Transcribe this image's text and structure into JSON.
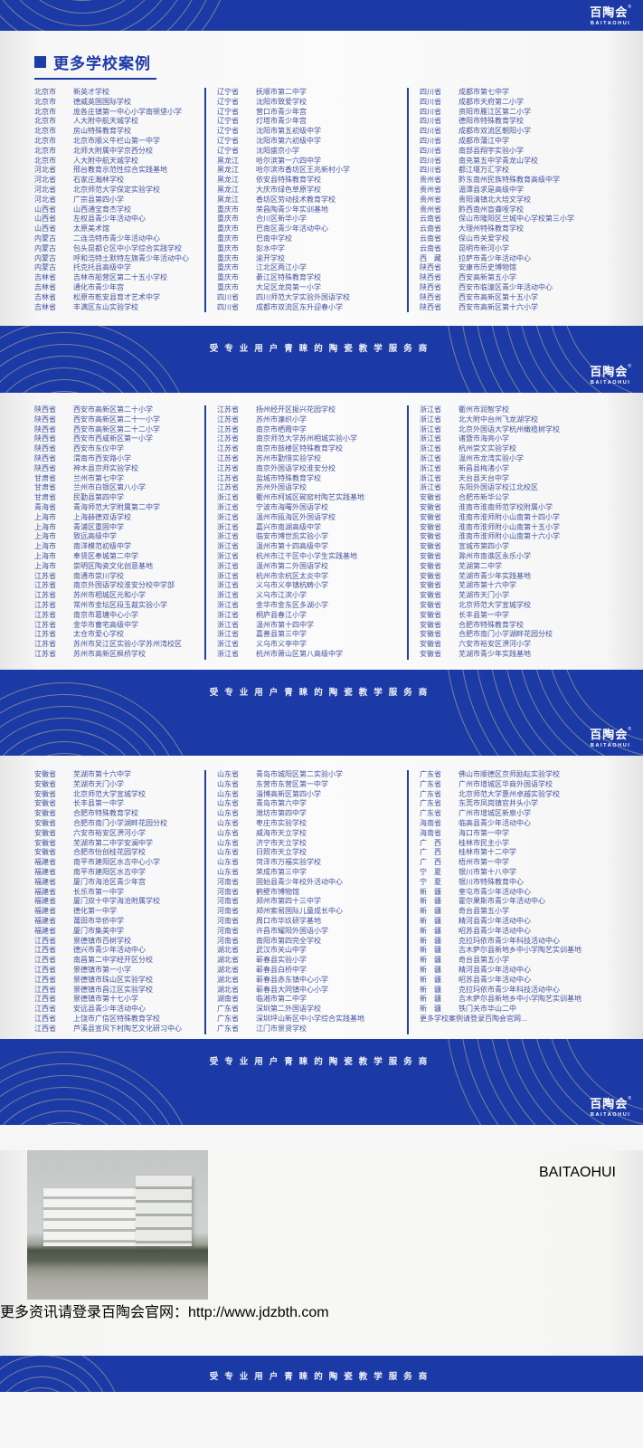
{
  "brand": {
    "logo_cn": "百陶会",
    "logo_en": "BAITAOHUI",
    "reg": "®",
    "slogan": "受专业用户青睐的陶瓷教学服务商"
  },
  "title": "更多学校案例",
  "colors": {
    "brand_blue": "#1c3aa5",
    "list_text_blue": "#43549f",
    "arc_gold": "#d3c396",
    "accent_yellow": "#e0b53a"
  },
  "footer": {
    "watermark": "BAITAOHUI",
    "more_label": "更多资讯请登录百陶会官网：",
    "url": "http://www.jdzbth.com"
  },
  "sections": [
    {
      "columns": [
        [
          [
            "北京市",
            "新英才学校"
          ],
          [
            "北京市",
            "德威英国国际学校"
          ],
          [
            "北京市",
            "庞各庄镇第一中心小学南顿垡小学"
          ],
          [
            "北京市",
            "人大附中航天城学校"
          ],
          [
            "北京市",
            "房山特殊教育学校"
          ],
          [
            "北京市",
            "北京市顺义牛栏山第一中学"
          ],
          [
            "北京市",
            "北师大附属中学京西分校"
          ],
          [
            "北京市",
            "人大附中航天城学校"
          ],
          [
            "河北省",
            "邢台教育示范性综合实践基地"
          ],
          [
            "河北省",
            "石家庄瀚林学校"
          ],
          [
            "河北省",
            "北京师范大学保定实验学校"
          ],
          [
            "河北省",
            "广宗县第四小学"
          ],
          [
            "山西省",
            "山西通宝育杰学校"
          ],
          [
            "山西省",
            "左权县青少年活动中心"
          ],
          [
            "山西省",
            "太原美术馆"
          ],
          [
            "内蒙古",
            "二连浩特市青少年活动中心"
          ],
          [
            "内蒙古",
            "包头昆都仑区中小学综合实践学校"
          ],
          [
            "内蒙古",
            "呼和浩特土默特左旗青少年活动中心"
          ],
          [
            "内蒙古",
            "托克托县高级中学"
          ],
          [
            "吉林省",
            "吉林市船营区第二十五小学校"
          ],
          [
            "吉林省",
            "通化市青少年宫"
          ],
          [
            "吉林省",
            "松原市乾安县育才艺术中学"
          ],
          [
            "吉林省",
            "丰满区东山实验学校"
          ]
        ],
        [
          [
            "辽宁省",
            "抚顺市第二中学"
          ],
          [
            "辽宁省",
            "沈阳市致爱学校"
          ],
          [
            "辽宁省",
            "营口市青少年宫"
          ],
          [
            "辽宁省",
            "灯塔市青少年宫"
          ],
          [
            "辽宁省",
            "沈阳市第五初级中学"
          ],
          [
            "辽宁省",
            "沈阳市第六初级中学"
          ],
          [
            "辽宁省",
            "沈阳盛京小学"
          ],
          [
            "黑龙江",
            "哈尔滨第一六四中学"
          ],
          [
            "黑龙江",
            "哈尔滨市香坊区王兆新村小学"
          ],
          [
            "黑龙江",
            "依安县特殊教育学校"
          ],
          [
            "黑龙江",
            "大庆市绿色草原学校"
          ],
          [
            "黑龙江",
            "香坊区劳动技术教育学校"
          ],
          [
            "重庆市",
            "荣昌陶青少年实训基地"
          ],
          [
            "重庆市",
            "合川区新华小学"
          ],
          [
            "重庆市",
            "巴南区青少年活动中心"
          ],
          [
            "重庆市",
            "巴南中学校"
          ],
          [
            "重庆市",
            "彭水中学"
          ],
          [
            "重庆市",
            "渝开学校"
          ],
          [
            "重庆市",
            "江北区两江小学"
          ],
          [
            "重庆市",
            "綦江区特殊教育学校"
          ],
          [
            "重庆市",
            "大足区龙岗第一小学"
          ],
          [
            "四川省",
            "四川师范大学实验外国语学校"
          ],
          [
            "四川省",
            "成都市双流区东升迎春小学"
          ]
        ],
        [
          [
            "四川省",
            "成都市第七中学"
          ],
          [
            "四川省",
            "成都市天府第二小学"
          ],
          [
            "四川省",
            "资阳市雁江区第二小学"
          ],
          [
            "四川省",
            "德阳市特殊教育学校"
          ],
          [
            "四川省",
            "成都市双流区朝阳小学"
          ],
          [
            "四川省",
            "成都市蒲江中学"
          ],
          [
            "四川省",
            "南部县翔宇实验小学"
          ],
          [
            "四川省",
            "南充第五中学青龙山学校"
          ],
          [
            "四川省",
            "都江堰万汇学校"
          ],
          [
            "贵州省",
            "黔东南州民族特殊教育高级中学"
          ],
          [
            "贵州省",
            "湄潭县求是高级中学"
          ],
          [
            "贵州省",
            "贵阳清镇北大培文学校"
          ],
          [
            "贵州省",
            "黔西南州盲聋哑学校"
          ],
          [
            "云南省",
            "保山市隆阳区兰城中心学校第三小学"
          ],
          [
            "云南省",
            "大理州特殊教育学校"
          ],
          [
            "云南省",
            "保山市关爱学校"
          ],
          [
            "云南省",
            "昆明市新河小学"
          ],
          [
            "西　藏",
            "拉萨市青少年活动中心"
          ],
          [
            "陕西省",
            "安康市历史博物馆"
          ],
          [
            "陕西省",
            "西安高新第五小学"
          ],
          [
            "陕西省",
            "西安市临潼区青少年活动中心"
          ],
          [
            "陕西省",
            "西安市高新区第十五小学"
          ],
          [
            "陕西省",
            "西安市高新区第十六小学"
          ]
        ]
      ]
    },
    {
      "columns": [
        [
          [
            "陕西省",
            "西安市高新区第二十小学"
          ],
          [
            "陕西省",
            "西安市高新区第二十一小学"
          ],
          [
            "陕西省",
            "西安市高新区第二十二小学"
          ],
          [
            "陕西省",
            "西安市西咸新区第一小学"
          ],
          [
            "陕西省",
            "西安市东仪中学"
          ],
          [
            "陕西省",
            "渭南市西安路小学"
          ],
          [
            "陕西省",
            "神木县京师实验学校"
          ],
          [
            "甘肃省",
            "兰州市第七中学"
          ],
          [
            "甘肃省",
            "兰州市白银区第八小学"
          ],
          [
            "甘肃省",
            "民勤县第四中学"
          ],
          [
            "青海省",
            "青海师范大学附属第二中学"
          ],
          [
            "上海市",
            "上海赫德双语学校"
          ],
          [
            "上海市",
            "青浦区重固中学"
          ],
          [
            "上海市",
            "致远高级中学"
          ],
          [
            "上海市",
            "南洋模范初级中学"
          ],
          [
            "上海市",
            "奉贤区奉城第二中学"
          ],
          [
            "上海市",
            "崇明区陶瓷文化创意基地"
          ],
          [
            "江苏省",
            "南通市崇川学校"
          ],
          [
            "江苏省",
            "南京外国语学校淮安分校中学部"
          ],
          [
            "江苏省",
            "苏州市相城区元和小学"
          ],
          [
            "江苏省",
            "常州市金坛区段玉裁实验小学"
          ],
          [
            "江苏省",
            "南京市葛塘中心小学"
          ],
          [
            "江苏省",
            "金华市曹宅高级中学"
          ],
          [
            "江苏省",
            "太仓市爱心学校"
          ],
          [
            "江苏省",
            "苏州市吴江区实验小学苏州湾校区"
          ],
          [
            "江苏省",
            "苏州市高新区枫桥学校"
          ]
        ],
        [
          [
            "江苏省",
            "扬州经开区振兴花园学校"
          ],
          [
            "江苏省",
            "苏州市濂织小学"
          ],
          [
            "江苏省",
            "南京市栖霞中学"
          ],
          [
            "江苏省",
            "南京师范大学苏州相城实验小学"
          ],
          [
            "江苏省",
            "南京市鼓楼区特殊教育学校"
          ],
          [
            "江苏省",
            "苏州市勤惜实验学校"
          ],
          [
            "江苏省",
            "南京外国语学校淮安分校"
          ],
          [
            "江苏省",
            "盐城市特殊教育学校"
          ],
          [
            "江苏省",
            "苏州外国语学校"
          ],
          [
            "浙江省",
            "衢州市柯城区碗窑村陶艺实践基地"
          ],
          [
            "浙江省",
            "宁波市海曙外国语学校"
          ],
          [
            "浙江省",
            "温州市瓯海区外国语学校"
          ],
          [
            "浙江省",
            "嘉兴市南湖高级中学"
          ],
          [
            "浙江省",
            "临安市博世凯实验小学"
          ],
          [
            "浙江省",
            "温州市第十四高级中学"
          ],
          [
            "浙江省",
            "杭州市江干区中小学生实践基地"
          ],
          [
            "浙江省",
            "温州市第二外国语学校"
          ],
          [
            "浙江省",
            "杭州市余杭区太炎中学"
          ],
          [
            "浙江省",
            "义乌市义亭镇杭畴小学"
          ],
          [
            "浙江省",
            "义乌市江滨小学"
          ],
          [
            "浙江省",
            "金华市金东区多湖小学"
          ],
          [
            "浙江省",
            "桐庐县春江小学"
          ],
          [
            "浙江省",
            "温州市第十四中学"
          ],
          [
            "浙江省",
            "嘉善县第三中学"
          ],
          [
            "浙江省",
            "义乌市义亭中学"
          ],
          [
            "浙江省",
            "杭州市萧山区第八高级中学"
          ]
        ],
        [
          [
            "浙江省",
            "衢州市润智学校"
          ],
          [
            "浙江省",
            "北大附中台州飞龙湖学校"
          ],
          [
            "浙江省",
            "北京外国语大学杭州橄榄树学校"
          ],
          [
            "浙江省",
            "诸暨市海亮小学"
          ],
          [
            "浙江省",
            "杭州崇文实验学校"
          ],
          [
            "浙江省",
            "温州市龙湾实验小学"
          ],
          [
            "浙江省",
            "新昌县梅渚小学"
          ],
          [
            "浙江省",
            "天台县天台中学"
          ],
          [
            "浙江省",
            "东阳外国语学校江北校区"
          ],
          [
            "安徽省",
            "合肥市新华公学"
          ],
          [
            "安徽省",
            "淮南市淮南师范学校附属小学"
          ],
          [
            "安徽省",
            "淮南市淮师附小山南第十四小学"
          ],
          [
            "安徽省",
            "淮南市淮师附小山南第十五小学"
          ],
          [
            "安徽省",
            "淮南市淮师附小山南第十六小学"
          ],
          [
            "安徽省",
            "宣城市第四小学"
          ],
          [
            "安徽省",
            "滁州市南谯区永乐小学"
          ],
          [
            "安徽省",
            "芜湖第二中学"
          ],
          [
            "安徽省",
            "芜湖市青少年实践基地"
          ],
          [
            "安徽省",
            "芜湖市第十六中学"
          ],
          [
            "安徽省",
            "芜湖市天门小学"
          ],
          [
            "安徽省",
            "北京师范大学宣城学校"
          ],
          [
            "安徽省",
            "长丰县第一中学"
          ],
          [
            "安徽省",
            "合肥市特殊教育学校"
          ],
          [
            "安徽省",
            "合肥市南门小学湖畔花园分校"
          ],
          [
            "安徽省",
            "六安市裕安区淠河小学"
          ],
          [
            "安徽省",
            "芜湖市青少年实践基地"
          ]
        ]
      ]
    },
    {
      "columns": [
        [
          [
            "安徽省",
            "芜湖市第十六中学"
          ],
          [
            "安徽省",
            "芜湖市天门小学"
          ],
          [
            "安徽省",
            "北京师范大学宣城学校"
          ],
          [
            "安徽省",
            "长丰县第一中学"
          ],
          [
            "安徽省",
            "合肥市特殊教育学校"
          ],
          [
            "安徽省",
            "合肥市南门小学湖畔花园分校"
          ],
          [
            "安徽省",
            "六安市裕安区淠河小学"
          ],
          [
            "安徽省",
            "芜湖市第二中学安澜中学"
          ],
          [
            "安徽省",
            "合肥市怡创桂花园学校"
          ],
          [
            "福建省",
            "南平市建阳区水吉中心小学"
          ],
          [
            "福建省",
            "南平市建阳区水吉中学"
          ],
          [
            "福建省",
            "厦门市海沧区青少年宫"
          ],
          [
            "福建省",
            "长乐市第一中学"
          ],
          [
            "福建省",
            "厦门双十中学海沧附属学校"
          ],
          [
            "福建省",
            "德化第一中学"
          ],
          [
            "福建省",
            "莆田市华侨中学"
          ],
          [
            "福建省",
            "厦门市集美中学"
          ],
          [
            "江西省",
            "景德镇市百树学校"
          ],
          [
            "江西省",
            "德兴市青少年活动中心"
          ],
          [
            "江西省",
            "南昌第二中学经开区分校"
          ],
          [
            "江西省",
            "景德镇市第一小学"
          ],
          [
            "江西省",
            "景德镇市珠山区实验学校"
          ],
          [
            "江西省",
            "景德镇市昌江区实验学校"
          ],
          [
            "江西省",
            "景德镇市第十七小学"
          ],
          [
            "江西省",
            "安远县青少年活动中心"
          ],
          [
            "江西省",
            "上饶市广信区特殊教育学校"
          ],
          [
            "江西省",
            "芦溪县宣风下村陶艺文化研习中心"
          ]
        ],
        [
          [
            "山东省",
            "青岛市城阳区第二实验小学"
          ],
          [
            "山东省",
            "东营市东营区第一中学"
          ],
          [
            "山东省",
            "淄博高新区第四小学"
          ],
          [
            "山东省",
            "青岛市第六中学"
          ],
          [
            "山东省",
            "潍坊市第四中学"
          ],
          [
            "山东省",
            "枣庄市实验学校"
          ],
          [
            "山东省",
            "威海市天立学校"
          ],
          [
            "山东省",
            "济宁市天立学校"
          ],
          [
            "山东省",
            "日照市天立学校"
          ],
          [
            "山东省",
            "菏泽市万福实验学校"
          ],
          [
            "山东省",
            "荣成市第三中学"
          ],
          [
            "河南省",
            "固始县青少年校外活动中心"
          ],
          [
            "河南省",
            "鹤壁市博物馆"
          ],
          [
            "河南省",
            "郑州市第四十三中学"
          ],
          [
            "河南省",
            "郑州索易国际儿童成长中心"
          ],
          [
            "河南省",
            "周口市华玖研学基地"
          ],
          [
            "河南省",
            "许昌市耀阳外国语小学"
          ],
          [
            "河南省",
            "南阳市第四完全学校"
          ],
          [
            "湖北省",
            "武汉市关山中学"
          ],
          [
            "湖北省",
            "蕲春县实验小学"
          ],
          [
            "湖北省",
            "蕲春县白桥中学"
          ],
          [
            "湖北省",
            "蕲春县赤东镇中心小学"
          ],
          [
            "湖北省",
            "蕲春县大同镇中心小学"
          ],
          [
            "湖南省",
            "临湘市第二中学"
          ],
          [
            "广东省",
            "深圳第二外国语学校"
          ],
          [
            "广东省",
            "深圳坪山新区中小学综合实践基地"
          ],
          [
            "广东省",
            "江门市景贤学校"
          ]
        ],
        [
          [
            "广东省",
            "佛山市顺德区京师励耘实验学校"
          ],
          [
            "广东省",
            "广州市增城区华商外国语学校"
          ],
          [
            "广东省",
            "北京师范大学惠州卓越实验学校"
          ],
          [
            "广东省",
            "东莞市凤岗镇官井头小学"
          ],
          [
            "广东省",
            "广州市增城区新泉小学"
          ],
          [
            "海南省",
            "临高县青少年活动中心"
          ],
          [
            "海南省",
            "海口市第一中学"
          ],
          [
            "广　西",
            "桂林市民主小学"
          ],
          [
            "广　西",
            "桂林市第十二中学"
          ],
          [
            "广　西",
            "梧州市第一中学"
          ],
          [
            "宁　夏",
            "银川市第十八中学"
          ],
          [
            "宁　夏",
            "银川市特殊教育中心"
          ],
          [
            "新　疆",
            "奎屯市青少年活动中心"
          ],
          [
            "新　疆",
            "霍尔果斯市青少年活动中心"
          ],
          [
            "新　疆",
            "奇台县第五小学"
          ],
          [
            "新　疆",
            "精河县青少年活动中心"
          ],
          [
            "新　疆",
            "昭苏县青少年活动中心"
          ],
          [
            "新　疆",
            "克拉玛依市青少年科技活动中心"
          ],
          [
            "新　疆",
            "吉木萨尔县新地乡中小学陶艺实训基地"
          ],
          [
            "新　疆",
            "奇台县第五小学"
          ],
          [
            "新　疆",
            "精河县青少年活动中心"
          ],
          [
            "新　疆",
            "昭苏县青少年活动中心"
          ],
          [
            "新　疆",
            "克拉玛依市青少年科技活动中心"
          ],
          [
            "新　疆",
            "吉木萨尔县新地乡中小学陶艺实训基地"
          ],
          [
            "新　疆",
            "铁门关市华山二中"
          ],
          [
            "",
            "更多学校案例请登录百陶会官网..."
          ]
        ]
      ]
    }
  ]
}
